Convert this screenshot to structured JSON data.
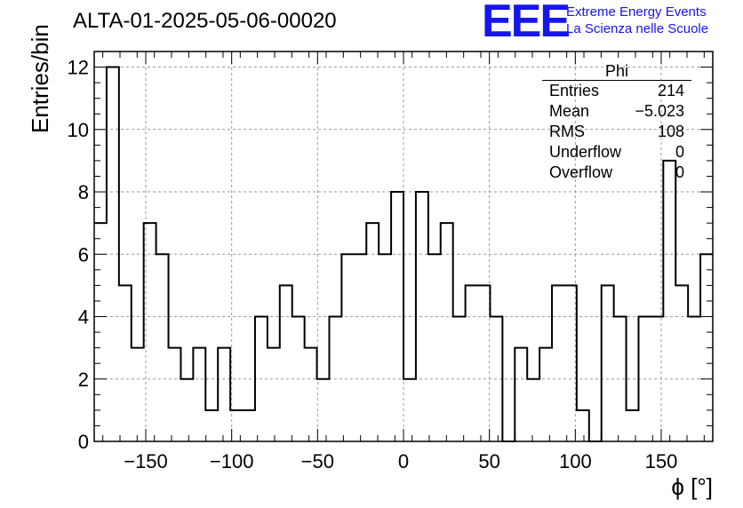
{
  "header": {
    "title": "ALTA-01-2025-05-06-00020",
    "logo": "EEE",
    "logo_line1": "Extreme Energy Events",
    "logo_line2": "La Scienza nelle Scuole"
  },
  "stats_box": {
    "title": "Phi",
    "rows": [
      {
        "label": "Entries",
        "value": "214"
      },
      {
        "label": "Mean",
        "value": "−5.023"
      },
      {
        "label": "RMS",
        "value": "108"
      },
      {
        "label": "Underflow",
        "value": "0"
      },
      {
        "label": "Overflow",
        "value": "0"
      }
    ]
  },
  "chart_data": {
    "type": "bar",
    "style": "step histogram",
    "title": "ALTA-01-2025-05-06-00020",
    "xlabel": "ϕ [°]",
    "ylabel": "Entries/bin",
    "xlim": [
      -180,
      180
    ],
    "ylim": [
      0,
      12.5
    ],
    "bin_width": 7.2,
    "bin_edges_start": -180,
    "values": [
      7,
      12,
      5,
      3,
      7,
      6,
      3,
      2,
      3,
      1,
      3,
      1,
      1,
      4,
      3,
      5,
      4,
      3,
      2,
      4,
      6,
      6,
      7,
      6,
      8,
      2,
      8,
      6,
      7,
      4,
      5,
      5,
      4,
      0,
      3,
      2,
      3,
      5,
      5,
      1,
      0,
      5,
      4,
      1,
      4,
      4,
      9,
      5,
      4,
      6
    ],
    "x_ticks": [
      -150,
      -100,
      -50,
      0,
      50,
      100,
      150
    ],
    "x_tick_labels": [
      "−150",
      "−100",
      "−50",
      "0",
      "50",
      "100",
      "150"
    ],
    "y_ticks": [
      0,
      2,
      4,
      6,
      8,
      10,
      12
    ],
    "y_tick_labels": [
      "0",
      "2",
      "4",
      "6",
      "8",
      "10",
      "12"
    ],
    "grid": true,
    "colors": {
      "line": "#000000",
      "grid": "#999999",
      "logo": "#1515ee"
    }
  }
}
